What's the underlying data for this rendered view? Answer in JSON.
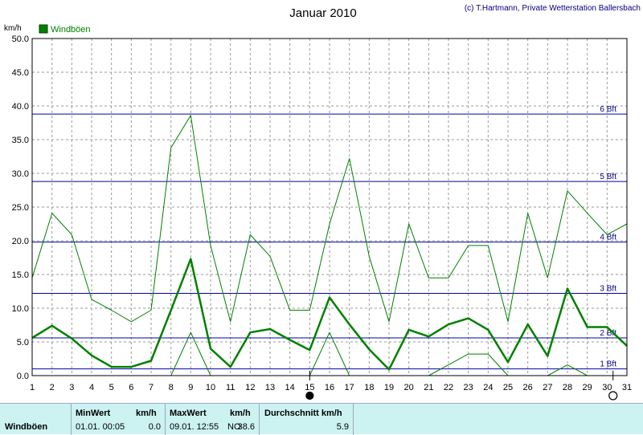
{
  "header": {
    "title": "Januar 2010",
    "copyright": "(c) T.Hartmann, Private Wetterstation Ballersbach"
  },
  "chart_data": {
    "type": "line",
    "yunit": "km/h",
    "ylim": [
      0,
      50
    ],
    "yticks": [
      "0.0",
      "5.0",
      "10.0",
      "15.0",
      "20.0",
      "25.0",
      "30.0",
      "35.0",
      "40.0",
      "45.0",
      "50.0"
    ],
    "x": [
      1,
      2,
      3,
      4,
      5,
      6,
      7,
      8,
      9,
      10,
      11,
      12,
      13,
      14,
      15,
      16,
      17,
      18,
      19,
      20,
      21,
      22,
      23,
      24,
      25,
      26,
      27,
      28,
      29,
      30,
      31
    ],
    "legend": {
      "label": "Windböen",
      "color": "#008000",
      "position": "top-left"
    },
    "grid": true,
    "series": [
      {
        "role": "max",
        "line_width": 1,
        "values": [
          14.5,
          24.1,
          20.9,
          11.3,
          9.7,
          8.0,
          9.7,
          33.8,
          38.6,
          19.3,
          8.0,
          20.9,
          17.7,
          9.7,
          9.7,
          22.5,
          32.2,
          17.7,
          8.0,
          22.5,
          14.5,
          14.5,
          19.3,
          19.3,
          8.0,
          24.1,
          14.5,
          27.4,
          24.1,
          20.9,
          22.5
        ]
      },
      {
        "role": "mean",
        "line_width": 2.5,
        "values": [
          5.6,
          7.4,
          5.5,
          3.0,
          1.3,
          1.3,
          2.2,
          9.7,
          17.3,
          4.0,
          1.3,
          6.4,
          6.9,
          5.3,
          3.8,
          11.6,
          7.6,
          3.9,
          0.9,
          6.8,
          5.8,
          7.6,
          8.5,
          6.8,
          2.0,
          7.6,
          2.9,
          12.9,
          7.2,
          7.2,
          4.4
        ]
      },
      {
        "role": "min",
        "line_width": 1,
        "values": [
          null,
          null,
          null,
          null,
          null,
          null,
          null,
          0.0,
          6.4,
          0.0,
          null,
          null,
          null,
          null,
          0.0,
          6.4,
          0.0,
          null,
          null,
          null,
          0.0,
          1.6,
          3.2,
          3.2,
          0.0,
          null,
          0.0,
          1.6,
          0.0,
          null,
          null
        ]
      }
    ],
    "beaufort_lines": [
      {
        "value": 1.0,
        "label": "1 Bft"
      },
      {
        "value": 5.6,
        "label": "2 Bft"
      },
      {
        "value": 12.2,
        "label": "3 Bft"
      },
      {
        "value": 19.8,
        "label": "4 Bft"
      },
      {
        "value": 28.8,
        "label": "5 Bft"
      },
      {
        "value": 38.8,
        "label": "6 Bft"
      }
    ],
    "moon_markers": [
      {
        "day": 15.0,
        "phase": "new-moon"
      },
      {
        "day": 30.3,
        "phase": "full-moon"
      }
    ]
  },
  "stats": {
    "row_label": "Windböen",
    "min": {
      "header": "MinWert",
      "unit": "km/h",
      "time": "01.01.  00:05",
      "value": "0.0"
    },
    "max": {
      "header": "MaxWert",
      "unit": "km/h",
      "time": "09.01.  12:55",
      "dir": "NO",
      "value": "38.6"
    },
    "avg": {
      "header": "Durchschnitt km/h",
      "value": "5.9"
    }
  }
}
